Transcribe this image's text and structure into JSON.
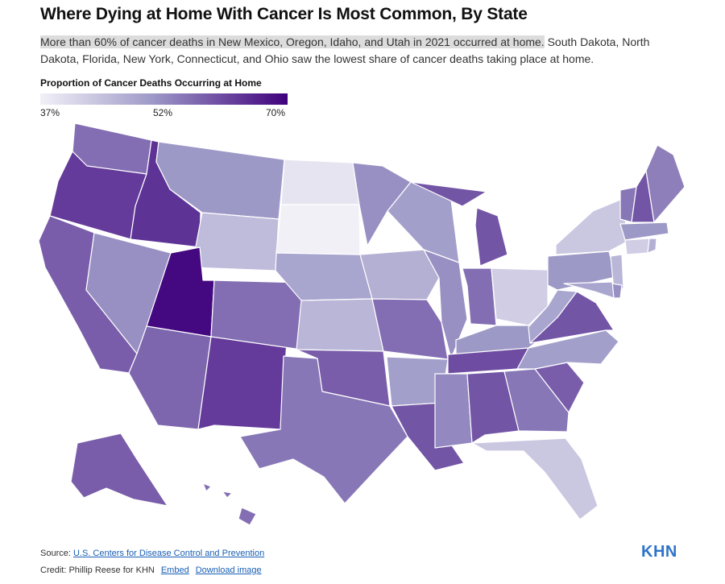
{
  "title": "Where Dying at Home With Cancer Is Most Common, By State",
  "description": {
    "highlight": "More than 60% of cancer deaths in New Mexico, Oregon, Idaho, and Utah in 2021 occurred at home.",
    "rest": " South Dakota, North Dakota, Florida, New York, Connecticut, and Ohio saw the lowest share of cancer deaths taking place at home."
  },
  "legend": {
    "title": "Proportion of Cancer Deaths Occurring at Home",
    "min_label": "37%",
    "mid_label": "52%",
    "max_label": "70%",
    "min_value": 37,
    "max_value": 70,
    "color_low": "#f2f0f7",
    "color_high": "#3f007d"
  },
  "footer": {
    "source_prefix": "Source: ",
    "source_link": "U.S. Centers for Disease Control and Prevention",
    "credit_prefix": "Credit: Phillip Reese for KHN",
    "embed_link": "Embed",
    "download_link": "Download image"
  },
  "logo": "KHN",
  "chart_data": {
    "type": "choropleth",
    "metric": "Proportion of Cancer Deaths Occurring at Home",
    "unit": "%",
    "states": [
      {
        "code": "WA",
        "value": 57
      },
      {
        "code": "OR",
        "value": 63
      },
      {
        "code": "CA",
        "value": 59
      },
      {
        "code": "NV",
        "value": 53
      },
      {
        "code": "ID",
        "value": 64
      },
      {
        "code": "MT",
        "value": 52
      },
      {
        "code": "WY",
        "value": 46
      },
      {
        "code": "UT",
        "value": 69
      },
      {
        "code": "AZ",
        "value": 58
      },
      {
        "code": "NM",
        "value": 63
      },
      {
        "code": "CO",
        "value": 57
      },
      {
        "code": "ND",
        "value": 39
      },
      {
        "code": "SD",
        "value": 37
      },
      {
        "code": "NE",
        "value": 50
      },
      {
        "code": "KS",
        "value": 47
      },
      {
        "code": "OK",
        "value": 59
      },
      {
        "code": "TX",
        "value": 56
      },
      {
        "code": "MN",
        "value": 53
      },
      {
        "code": "IA",
        "value": 48
      },
      {
        "code": "MO",
        "value": 57
      },
      {
        "code": "AR",
        "value": 51
      },
      {
        "code": "LA",
        "value": 60
      },
      {
        "code": "WI",
        "value": 51
      },
      {
        "code": "IL",
        "value": 53
      },
      {
        "code": "MI",
        "value": 60
      },
      {
        "code": "IN",
        "value": 57
      },
      {
        "code": "OH",
        "value": 43
      },
      {
        "code": "KY",
        "value": 52
      },
      {
        "code": "TN",
        "value": 61
      },
      {
        "code": "MS",
        "value": 54
      },
      {
        "code": "AL",
        "value": 60
      },
      {
        "code": "GA",
        "value": 56
      },
      {
        "code": "FL",
        "value": 44
      },
      {
        "code": "SC",
        "value": 59
      },
      {
        "code": "NC",
        "value": 51
      },
      {
        "code": "VA",
        "value": 60
      },
      {
        "code": "WV",
        "value": 50
      },
      {
        "code": "PA",
        "value": 52
      },
      {
        "code": "NY",
        "value": 44
      },
      {
        "code": "VT",
        "value": 56
      },
      {
        "code": "NH",
        "value": 60
      },
      {
        "code": "ME",
        "value": 55
      },
      {
        "code": "MA",
        "value": 52
      },
      {
        "code": "CT",
        "value": 43
      },
      {
        "code": "RI",
        "value": 48
      },
      {
        "code": "NJ",
        "value": 47
      },
      {
        "code": "DE",
        "value": 53
      },
      {
        "code": "MD",
        "value": 50
      },
      {
        "code": "AK",
        "value": 59
      },
      {
        "code": "HI",
        "value": 57
      }
    ]
  }
}
